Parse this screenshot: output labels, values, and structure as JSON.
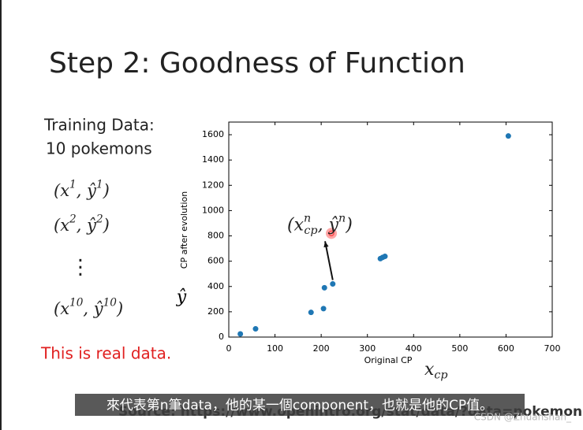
{
  "slide_title": "Step 2: Goodness of Function",
  "left_text": {
    "heading": [
      "Training Data:",
      "10 pokemons"
    ],
    "pairs": [
      [
        {
          "t": "(x"
        },
        {
          "t": "1",
          "s": "sup"
        },
        {
          "t": ", ŷ"
        },
        {
          "t": "1",
          "s": "sup"
        },
        {
          "t": ")"
        }
      ],
      [
        {
          "t": "(x"
        },
        {
          "t": "2",
          "s": "sup"
        },
        {
          "t": ", ŷ"
        },
        {
          "t": "2",
          "s": "sup"
        },
        {
          "t": ")"
        }
      ],
      [
        {
          "t": "(x"
        },
        {
          "t": "10",
          "s": "sup"
        },
        {
          "t": ", ŷ"
        },
        {
          "t": "10",
          "s": "sup"
        },
        {
          "t": ")"
        }
      ]
    ],
    "dots": "⋮",
    "note": "This is real data."
  },
  "source": "Source: https://www.openintro.org/stat/data/?data=pokemon",
  "caption": "來代表第n筆data，他的某一個component，也就是他的CP值。",
  "watermark": "CSDN @Zhuanshan_",
  "chart_data": {
    "type": "scatter",
    "color": "#1f77b4",
    "x_label": "Original CP",
    "y_label": "CP after evolution",
    "x_math": [
      {
        "t": "x"
      },
      {
        "t": "cp",
        "s": "sub"
      }
    ],
    "y_math": "ŷ",
    "series": [
      {
        "x": [
          25,
          58,
          178,
          205,
          207,
          225,
          328,
          333,
          338,
          605
        ],
        "values": [
          25,
          65,
          195,
          225,
          390,
          420,
          620,
          630,
          638,
          1590
        ]
      }
    ],
    "annotation": {
      "parts": [
        {
          "t": "(x"
        },
        {
          "t": "n",
          "s": "sup"
        },
        {
          "t": "cp",
          "s": "sub"
        },
        {
          "t": ", ŷ"
        },
        {
          "t": "n",
          "s": "sup"
        },
        {
          "t": ")"
        }
      ],
      "x": 222,
      "y": 820,
      "color": "#ff5050"
    },
    "xlim": [
      0,
      700
    ],
    "xticks": [
      0,
      100,
      200,
      300,
      400,
      500,
      600,
      700
    ],
    "ylim": [
      0,
      1700
    ],
    "yticks": [
      0,
      200,
      400,
      600,
      800,
      1000,
      1200,
      1400,
      1600
    ]
  }
}
